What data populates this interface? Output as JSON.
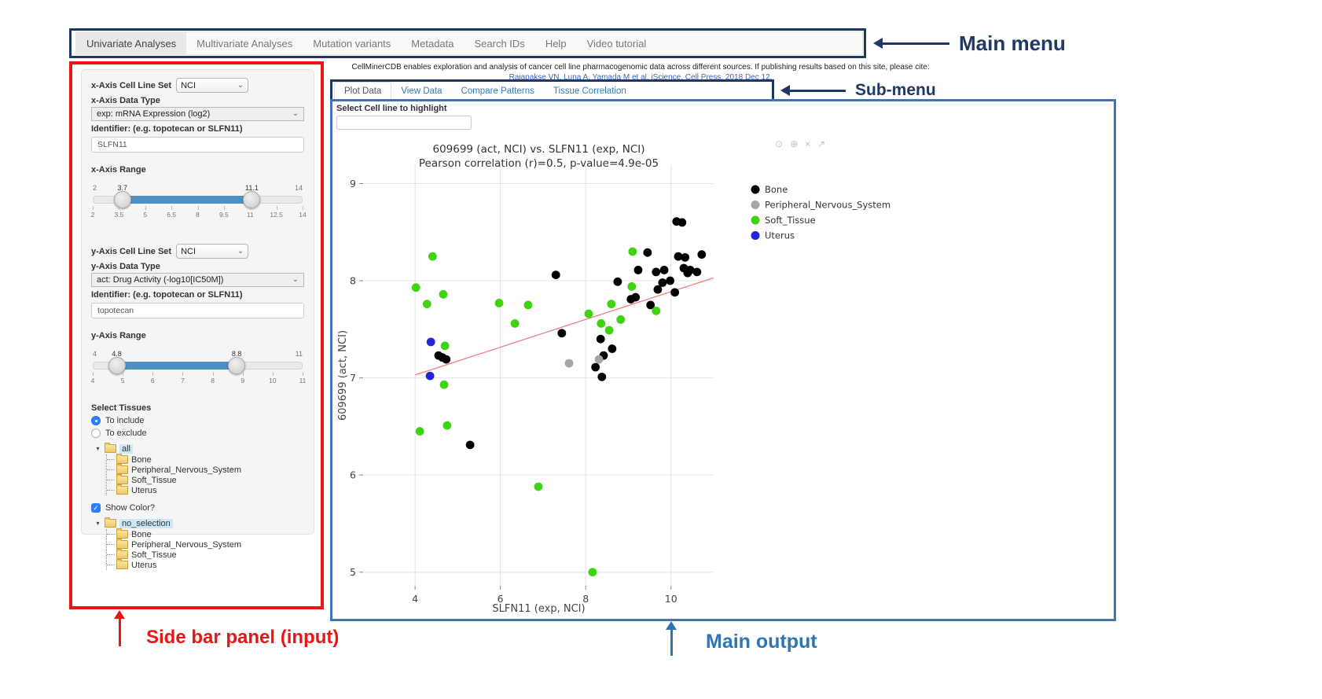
{
  "main_menu": {
    "items": [
      {
        "label": "Univariate Analyses",
        "active": true
      },
      {
        "label": "Multivariate Analyses",
        "active": false
      },
      {
        "label": "Mutation variants",
        "active": false
      },
      {
        "label": "Metadata",
        "active": false
      },
      {
        "label": "Search IDs",
        "active": false
      },
      {
        "label": "Help",
        "active": false
      },
      {
        "label": "Video tutorial",
        "active": false
      }
    ]
  },
  "citation": {
    "line1": "CellMinerCDB enables exploration and analysis of cancer cell line pharmacogenomic data across different sources. If publishing results based on this site, please cite:",
    "link": "Rajapakse VN, Luna A, Yamada M et al. iScience, Cell Press, 2018 Dec 12."
  },
  "annotations": {
    "main_menu_label": "Main menu",
    "sub_menu_label": "Sub-menu",
    "sidebar_label": "Side bar panel (input)",
    "main_output_label": "Main output",
    "navy": "#1F3864",
    "red": "#EC1515",
    "blue": "#2E75B6"
  },
  "sidebar": {
    "x_axis": {
      "cell_line_set_label": "x-Axis Cell Line Set",
      "cell_line_set_value": "NCI",
      "data_type_label": "x-Axis Data Type",
      "data_type_value": "exp: mRNA Expression (log2)",
      "identifier_label": "Identifier: (e.g. topotecan or SLFN11)",
      "identifier_value": "SLFN11",
      "range_label": "x-Axis Range",
      "range": {
        "min": 2,
        "max": 14,
        "from": 3.7,
        "to": 11.1,
        "ticks": [
          2,
          3.5,
          5,
          6.5,
          8,
          9.5,
          11,
          12.5,
          14
        ]
      }
    },
    "y_axis": {
      "cell_line_set_label": "y-Axis Cell Line Set",
      "cell_line_set_value": "NCI",
      "data_type_label": "y-Axis Data Type",
      "data_type_value": "act: Drug Activity (-log10[IC50M])",
      "identifier_label": "Identifier: (e.g. topotecan or SLFN11)",
      "identifier_value": "topotecan",
      "range_label": "y-Axis Range",
      "range": {
        "min": 4,
        "max": 11,
        "from": 4.8,
        "to": 8.8,
        "ticks": [
          4,
          5,
          6,
          7,
          8,
          9,
          10,
          11
        ]
      }
    },
    "tissues": {
      "label": "Select Tissues",
      "include_label": "To include",
      "exclude_label": "To exclude",
      "include_selected": true,
      "tree_all": {
        "root": "all",
        "children": [
          "Bone",
          "Peripheral_Nervous_System",
          "Soft_Tissue",
          "Uterus"
        ]
      },
      "show_color_label": "Show Color?",
      "show_color_checked": true,
      "tree_color": {
        "root": "no_selection",
        "children": [
          "Bone",
          "Peripheral_Nervous_System",
          "Soft_Tissue",
          "Uterus"
        ]
      }
    }
  },
  "submenu": {
    "tabs": [
      {
        "label": "Plot Data",
        "active": true
      },
      {
        "label": "View Data",
        "active": false
      },
      {
        "label": "Compare Patterns",
        "active": false
      },
      {
        "label": "Tissue Correlation",
        "active": false
      }
    ]
  },
  "main_output": {
    "highlight_label": "Select Cell line to highlight",
    "highlight_value": "",
    "modebar_icons": [
      "camera",
      "zoom-in",
      "close",
      "autoscale"
    ]
  },
  "chart_data": {
    "type": "scatter",
    "title": "609699 (act, NCI) vs. SLFN11 (exp, NCI)",
    "subtitle": "Pearson correlation (r)=0.5, p-value=4.9e-05",
    "xlabel": "SLFN11 (exp, NCI)",
    "ylabel": "609699 (act, NCI)",
    "xlim": [
      2.8,
      11.0
    ],
    "ylim": [
      4.86,
      9.19
    ],
    "x_ticks": [
      4,
      6,
      8,
      10
    ],
    "y_ticks": [
      5,
      6,
      7,
      8,
      9
    ],
    "grid": true,
    "legend_position": "right",
    "trend_line": {
      "x1": 4.0,
      "y1": 7.03,
      "x2": 11.0,
      "y2": 8.03,
      "color": "#F08080"
    },
    "series": [
      {
        "name": "Bone",
        "color": "#000000",
        "points": [
          [
            10.13,
            8.61
          ],
          [
            10.26,
            8.6
          ],
          [
            9.45,
            8.29
          ],
          [
            10.72,
            8.27
          ],
          [
            10.17,
            8.25
          ],
          [
            10.33,
            8.24
          ],
          [
            10.3,
            8.13
          ],
          [
            10.45,
            8.11
          ],
          [
            10.61,
            8.09
          ],
          [
            10.39,
            8.08
          ],
          [
            9.23,
            8.11
          ],
          [
            9.65,
            8.09
          ],
          [
            9.84,
            8.11
          ],
          [
            7.3,
            8.06
          ],
          [
            8.75,
            7.99
          ],
          [
            9.98,
            8.0
          ],
          [
            9.8,
            7.98
          ],
          [
            9.69,
            7.91
          ],
          [
            10.09,
            7.88
          ],
          [
            9.17,
            7.83
          ],
          [
            9.06,
            7.81
          ],
          [
            9.52,
            7.75
          ],
          [
            7.44,
            7.46
          ],
          [
            8.35,
            7.4
          ],
          [
            8.62,
            7.3
          ],
          [
            8.42,
            7.23
          ],
          [
            4.55,
            7.23
          ],
          [
            4.64,
            7.21
          ],
          [
            4.73,
            7.19
          ],
          [
            8.23,
            7.11
          ],
          [
            8.38,
            7.01
          ],
          [
            5.29,
            6.31
          ]
        ]
      },
      {
        "name": "Peripheral_Nervous_System",
        "color": "#A6A6A6",
        "points": [
          [
            8.31,
            7.19
          ],
          [
            7.61,
            7.15
          ]
        ]
      },
      {
        "name": "Soft_Tissue",
        "color": "#3FD312",
        "points": [
          [
            4.41,
            8.25
          ],
          [
            9.1,
            8.3
          ],
          [
            9.08,
            7.94
          ],
          [
            4.02,
            7.93
          ],
          [
            4.66,
            7.86
          ],
          [
            5.97,
            7.77
          ],
          [
            4.28,
            7.76
          ],
          [
            6.65,
            7.75
          ],
          [
            8.6,
            7.76
          ],
          [
            9.65,
            7.69
          ],
          [
            8.07,
            7.66
          ],
          [
            8.82,
            7.6
          ],
          [
            8.36,
            7.56
          ],
          [
            6.34,
            7.56
          ],
          [
            8.55,
            7.49
          ],
          [
            4.7,
            7.33
          ],
          [
            4.68,
            6.93
          ],
          [
            4.75,
            6.51
          ],
          [
            4.11,
            6.45
          ],
          [
            6.89,
            5.88
          ],
          [
            8.16,
            5.0
          ]
        ]
      },
      {
        "name": "Uterus",
        "color": "#2323D7",
        "points": [
          [
            4.37,
            7.37
          ],
          [
            4.35,
            7.02
          ]
        ]
      }
    ]
  }
}
